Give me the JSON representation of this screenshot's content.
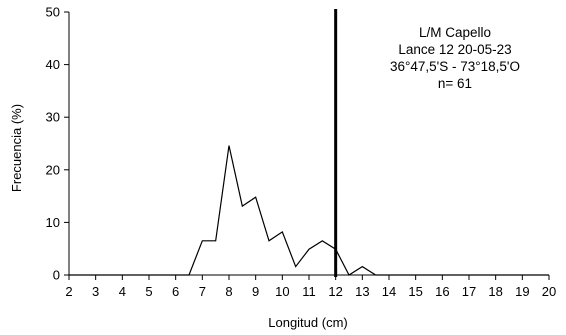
{
  "chart_data": {
    "type": "line",
    "xlabel": "Longitud (cm)",
    "ylabel": "Frecuencia (%)",
    "xlim": [
      2,
      20
    ],
    "ylim": [
      0,
      50
    ],
    "xticks": [
      2,
      3,
      4,
      5,
      6,
      7,
      8,
      9,
      10,
      11,
      12,
      13,
      14,
      15,
      16,
      17,
      18,
      19,
      20
    ],
    "yticks": [
      0,
      10,
      20,
      30,
      40,
      50
    ],
    "grid": false,
    "series": [
      {
        "x": [
          2,
          2.5,
          3,
          3.5,
          4,
          4.5,
          5,
          5.5,
          6,
          6.5,
          7,
          7.5,
          8,
          8.5,
          9,
          9.5,
          10,
          10.5,
          11,
          11.5,
          12,
          12.5,
          13,
          13.5,
          14,
          14.5,
          15,
          15.5,
          16,
          16.5,
          17,
          17.5,
          18,
          18.5,
          19,
          19.5,
          20
        ],
        "values": [
          0,
          0,
          0,
          0,
          0,
          0,
          0,
          0,
          0,
          0,
          6.5,
          6.5,
          24.6,
          13.1,
          14.8,
          6.5,
          8.2,
          1.6,
          4.9,
          6.5,
          4.9,
          0,
          1.6,
          0,
          0,
          0,
          0,
          0,
          0,
          0,
          0,
          0,
          0,
          0,
          0,
          0,
          0
        ]
      }
    ],
    "reference_line": {
      "x": 12
    },
    "annotation": {
      "lines": [
        "L/M Capello",
        "Lance 12  20-05-23",
        "36°47,5'S - 73°18,5'O",
        "n= 61"
      ]
    }
  }
}
